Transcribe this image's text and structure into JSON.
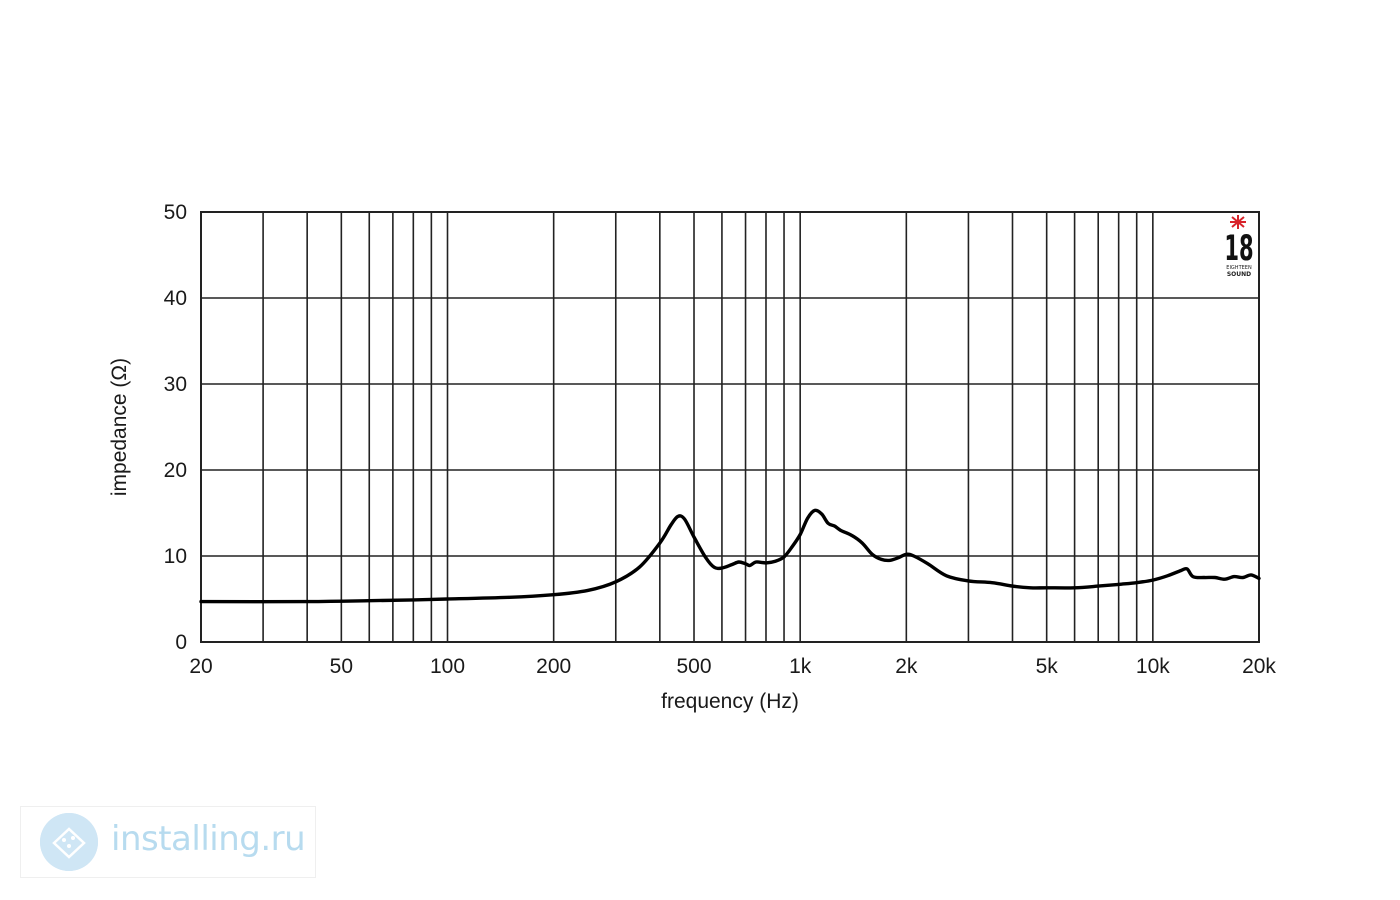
{
  "chart_data": {
    "type": "line",
    "xlabel": "frequency (Hz)",
    "ylabel": "impedance (Ω)",
    "x_scale": "log",
    "xlim": [
      20,
      20000
    ],
    "ylim": [
      0,
      50
    ],
    "grid": true,
    "x_tick_values": [
      20,
      30,
      40,
      50,
      60,
      70,
      80,
      90,
      100,
      200,
      300,
      400,
      500,
      600,
      700,
      800,
      900,
      1000,
      2000,
      3000,
      4000,
      5000,
      6000,
      7000,
      8000,
      9000,
      10000,
      20000
    ],
    "x_tick_labels": [
      {
        "value": 20,
        "label": "20"
      },
      {
        "value": 50,
        "label": "50"
      },
      {
        "value": 100,
        "label": "100"
      },
      {
        "value": 200,
        "label": "200"
      },
      {
        "value": 500,
        "label": "500"
      },
      {
        "value": 1000,
        "label": "1k"
      },
      {
        "value": 2000,
        "label": "2k"
      },
      {
        "value": 5000,
        "label": "5k"
      },
      {
        "value": 10000,
        "label": "10k"
      },
      {
        "value": 20000,
        "label": "20k"
      }
    ],
    "y_ticks": [
      {
        "value": 0,
        "label": "0"
      },
      {
        "value": 10,
        "label": "10"
      },
      {
        "value": 20,
        "label": "20"
      },
      {
        "value": 30,
        "label": "30"
      },
      {
        "value": 40,
        "label": "40"
      },
      {
        "value": 50,
        "label": "50"
      }
    ],
    "series": [
      {
        "color": "#000000",
        "points": [
          [
            20,
            4.7
          ],
          [
            40,
            4.7
          ],
          [
            60,
            4.8
          ],
          [
            80,
            4.9
          ],
          [
            100,
            5.0
          ],
          [
            150,
            5.2
          ],
          [
            200,
            5.5
          ],
          [
            250,
            6.0
          ],
          [
            300,
            7.0
          ],
          [
            350,
            8.7
          ],
          [
            400,
            11.5
          ],
          [
            430,
            13.6
          ],
          [
            450,
            14.6
          ],
          [
            470,
            14.3
          ],
          [
            500,
            12.2
          ],
          [
            540,
            9.8
          ],
          [
            570,
            8.7
          ],
          [
            600,
            8.6
          ],
          [
            640,
            9.0
          ],
          [
            670,
            9.3
          ],
          [
            700,
            9.1
          ],
          [
            720,
            8.9
          ],
          [
            750,
            9.3
          ],
          [
            800,
            9.2
          ],
          [
            850,
            9.4
          ],
          [
            900,
            9.9
          ],
          [
            950,
            11.1
          ],
          [
            1000,
            12.5
          ],
          [
            1050,
            14.4
          ],
          [
            1100,
            15.3
          ],
          [
            1150,
            14.9
          ],
          [
            1200,
            13.8
          ],
          [
            1250,
            13.5
          ],
          [
            1300,
            13.0
          ],
          [
            1400,
            12.4
          ],
          [
            1500,
            11.5
          ],
          [
            1600,
            10.2
          ],
          [
            1700,
            9.6
          ],
          [
            1800,
            9.5
          ],
          [
            1900,
            9.8
          ],
          [
            2000,
            10.2
          ],
          [
            2100,
            10.0
          ],
          [
            2300,
            9.1
          ],
          [
            2600,
            7.7
          ],
          [
            3000,
            7.1
          ],
          [
            3500,
            6.9
          ],
          [
            4000,
            6.5
          ],
          [
            4500,
            6.3
          ],
          [
            5000,
            6.3
          ],
          [
            6000,
            6.3
          ],
          [
            7000,
            6.5
          ],
          [
            8000,
            6.7
          ],
          [
            9000,
            6.9
          ],
          [
            10000,
            7.2
          ],
          [
            11000,
            7.7
          ],
          [
            12000,
            8.3
          ],
          [
            12500,
            8.5
          ],
          [
            13000,
            7.6
          ],
          [
            14000,
            7.5
          ],
          [
            15000,
            7.5
          ],
          [
            16000,
            7.3
          ],
          [
            17000,
            7.6
          ],
          [
            18000,
            7.5
          ],
          [
            19000,
            7.8
          ],
          [
            20000,
            7.4
          ]
        ]
      }
    ]
  },
  "logo": {
    "number": "18",
    "line1": "EIGHTEEN",
    "line2": "SOUND",
    "accent": "#d8232a"
  },
  "watermark": {
    "text": "installing.ru",
    "color": "#b7dbef"
  }
}
